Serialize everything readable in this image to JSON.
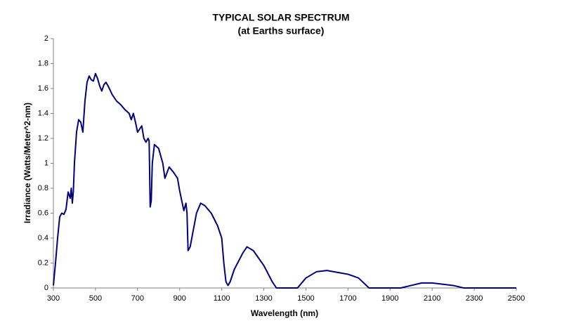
{
  "chart_data": {
    "type": "line",
    "title": "TYPICAL SOLAR SPECTRUM",
    "subtitle": "(at Earths surface)",
    "x_label": "Wavelength (nm)",
    "y_label": "Irradiance (Watts/Meter^2-nm)",
    "x": [
      300,
      310,
      320,
      330,
      340,
      350,
      360,
      370,
      380,
      385,
      390,
      395,
      400,
      410,
      420,
      430,
      440,
      450,
      460,
      470,
      480,
      490,
      500,
      510,
      520,
      530,
      540,
      550,
      560,
      580,
      600,
      620,
      640,
      660,
      670,
      680,
      690,
      700,
      720,
      730,
      740,
      750,
      755,
      760,
      765,
      770,
      780,
      800,
      820,
      830,
      850,
      870,
      890,
      900,
      910,
      920,
      930,
      935,
      940,
      950,
      960,
      980,
      1000,
      1020,
      1050,
      1080,
      1100,
      1110,
      1120,
      1130,
      1140,
      1160,
      1200,
      1220,
      1250,
      1300,
      1340,
      1360,
      1460,
      1500,
      1550,
      1600,
      1700,
      1750,
      1800,
      1950,
      2000,
      2050,
      2100,
      2200,
      2250,
      2500
    ],
    "series": [
      {
        "name": "Irradiance",
        "color": "#000080",
        "values": [
          0.02,
          0.2,
          0.4,
          0.57,
          0.6,
          0.59,
          0.63,
          0.77,
          0.72,
          0.8,
          0.68,
          0.78,
          1.0,
          1.25,
          1.35,
          1.33,
          1.25,
          1.5,
          1.65,
          1.7,
          1.67,
          1.66,
          1.72,
          1.68,
          1.62,
          1.58,
          1.63,
          1.65,
          1.62,
          1.55,
          1.5,
          1.47,
          1.43,
          1.4,
          1.35,
          1.4,
          1.33,
          1.25,
          1.3,
          1.2,
          1.17,
          1.2,
          1.18,
          0.65,
          0.7,
          1.0,
          1.15,
          1.12,
          1.0,
          0.88,
          0.97,
          0.93,
          0.88,
          0.78,
          0.7,
          0.62,
          0.68,
          0.6,
          0.3,
          0.33,
          0.42,
          0.6,
          0.68,
          0.66,
          0.6,
          0.5,
          0.4,
          0.2,
          0.05,
          0.02,
          0.05,
          0.15,
          0.28,
          0.33,
          0.3,
          0.18,
          0.05,
          0,
          0,
          0.08,
          0.13,
          0.14,
          0.11,
          0.08,
          0,
          0,
          0.02,
          0.04,
          0.04,
          0.02,
          0,
          0
        ]
      }
    ],
    "xlim": [
      300,
      2500
    ],
    "xticks": [
      300,
      500,
      700,
      900,
      1100,
      1300,
      1500,
      1700,
      1900,
      2100,
      2300,
      2500
    ],
    "ylim": [
      0,
      2
    ],
    "yticks": [
      0,
      0.2,
      0.4,
      0.6,
      0.8,
      1,
      1.2,
      1.4,
      1.6,
      1.8,
      2
    ],
    "grid": false
  }
}
